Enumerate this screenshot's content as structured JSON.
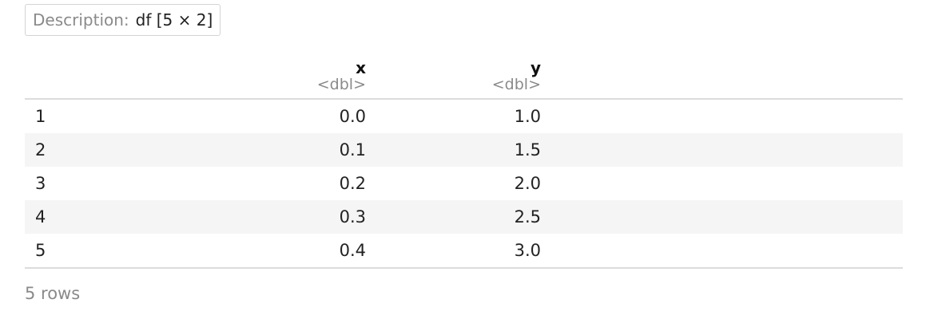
{
  "description": {
    "label": "Description:",
    "value": "df [5 × 2]"
  },
  "table": {
    "columns": [
      {
        "name": "x",
        "type": "<dbl>"
      },
      {
        "name": "y",
        "type": "<dbl>"
      }
    ],
    "rows": [
      {
        "index": "1",
        "x": "0.0",
        "y": "1.0"
      },
      {
        "index": "2",
        "x": "0.1",
        "y": "1.5"
      },
      {
        "index": "3",
        "x": "0.2",
        "y": "2.0"
      },
      {
        "index": "4",
        "x": "0.3",
        "y": "2.5"
      },
      {
        "index": "5",
        "x": "0.4",
        "y": "3.0"
      }
    ]
  },
  "footer": {
    "row_count": "5 rows"
  }
}
